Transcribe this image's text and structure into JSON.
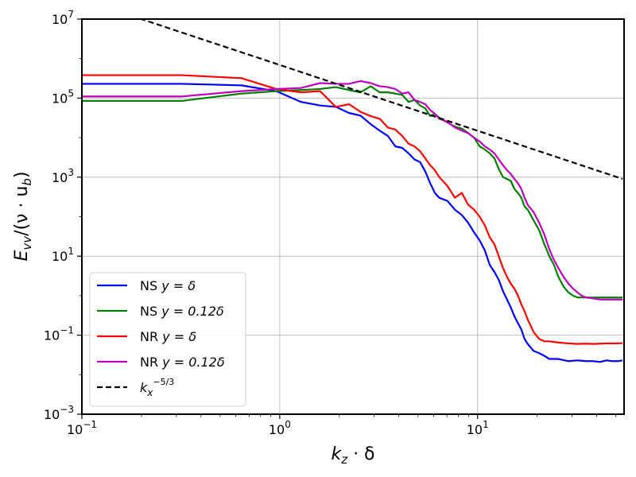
{
  "chart_data": {
    "type": "line",
    "xscale": "log",
    "yscale": "log",
    "xlim": [
      0.1,
      55
    ],
    "ylim": [
      0.001,
      10000000
    ],
    "grid": true,
    "legend_position": "lower-left",
    "xlabel_parts": {
      "base": "k",
      "sub": "z",
      "rest": " · δ"
    },
    "ylabel_parts": {
      "base": "E",
      "sub": "vv",
      "rest": "/(ν · u",
      "sub2": "b",
      "close": ")"
    },
    "x_ticks": [
      {
        "value": 0.1,
        "base": "10",
        "exp": "−1"
      },
      {
        "value": 1,
        "base": "10",
        "exp": "0"
      },
      {
        "value": 10,
        "base": "10",
        "exp": "1"
      }
    ],
    "y_ticks": [
      {
        "value": 0.001,
        "base": "10",
        "exp": "−3"
      },
      {
        "value": 0.1,
        "base": "10",
        "exp": "−1"
      },
      {
        "value": 10,
        "base": "10",
        "exp": "1"
      },
      {
        "value": 1000,
        "base": "10",
        "exp": "3"
      },
      {
        "value": 100000,
        "base": "10",
        "exp": "5"
      },
      {
        "value": 10000000,
        "base": "10",
        "exp": "7"
      }
    ],
    "series": [
      {
        "name": "NS y = δ",
        "name_parts": {
          "prefix": "NS ",
          "var": "y",
          "eq": " = ",
          "val": "δ"
        },
        "color": "#0000ff",
        "dash": "solid",
        "x": [
          0.1,
          0.2,
          0.32,
          0.64,
          0.96,
          1.28,
          1.6,
          1.92,
          2.24,
          2.56,
          2.88,
          3.2,
          3.52,
          3.84,
          4.16,
          4.48,
          4.8,
          5.12,
          5.44,
          5.76,
          6.08,
          6.4,
          7.04,
          7.68,
          8.32,
          8.96,
          9.6,
          10.24,
          10.88,
          11.52,
          12.16,
          12.8,
          13.44,
          14.08,
          14.72,
          15.36,
          16.0,
          16.64,
          17.28,
          17.92,
          19.2,
          20.48,
          21.76,
          23.04,
          25.6,
          28.8,
          32.0,
          35.2,
          38.4,
          41.6,
          44.8,
          48.0,
          51.2,
          54.0
        ],
        "y": [
          230000,
          230000,
          230000,
          210000,
          150000,
          80000,
          65000,
          60000,
          42000,
          36000,
          22000,
          15000,
          11000,
          6000,
          5500,
          4000,
          2800,
          2400,
          1400,
          700,
          400,
          300,
          250,
          150,
          110,
          70,
          40,
          25,
          14,
          6,
          4,
          2.5,
          1.3,
          0.8,
          0.5,
          0.3,
          0.2,
          0.14,
          0.08,
          0.06,
          0.04,
          0.035,
          0.03,
          0.025,
          0.025,
          0.022,
          0.023,
          0.022,
          0.022,
          0.021,
          0.023,
          0.022,
          0.022,
          0.023
        ]
      },
      {
        "name": "NS y = 0.12δ",
        "name_parts": {
          "prefix": "NS ",
          "var": "y",
          "eq": " = ",
          "val": "0.12δ"
        },
        "color": "#008000",
        "dash": "solid",
        "x": [
          0.1,
          0.2,
          0.32,
          0.64,
          0.96,
          1.28,
          1.6,
          1.92,
          2.24,
          2.56,
          2.88,
          3.2,
          3.52,
          3.84,
          4.16,
          4.48,
          4.8,
          5.12,
          5.44,
          5.76,
          6.08,
          6.4,
          7.04,
          7.68,
          8.32,
          8.96,
          9.6,
          10.24,
          10.88,
          11.52,
          12.16,
          12.8,
          13.44,
          14.08,
          14.72,
          15.36,
          16.0,
          16.64,
          17.28,
          17.92,
          19.2,
          20.48,
          21.76,
          23.04,
          24.32,
          25.6,
          27.2,
          28.8,
          30.4,
          32.0,
          33.6,
          35.2,
          38.4,
          41.6,
          44.8,
          48.0,
          51.2,
          54.0
        ],
        "y": [
          85000,
          85000,
          85000,
          130000,
          150000,
          160000,
          170000,
          190000,
          160000,
          140000,
          200000,
          140000,
          140000,
          130000,
          120000,
          80000,
          90000,
          65000,
          55000,
          35000,
          40000,
          32000,
          24000,
          19000,
          17000,
          13000,
          10000,
          6000,
          5000,
          4000,
          3000,
          1600,
          1000,
          900,
          800,
          500,
          400,
          300,
          180,
          150,
          80,
          45,
          20,
          10,
          6,
          3,
          1.7,
          1.2,
          1.0,
          0.9,
          0.9,
          0.9,
          0.9,
          0.9,
          0.9,
          0.9,
          0.9,
          0.9
        ]
      },
      {
        "name": "NR y = δ",
        "name_parts": {
          "prefix": "NR ",
          "var": "y",
          "eq": " = ",
          "val": "δ"
        },
        "color": "#ff0000",
        "dash": "solid",
        "x": [
          0.1,
          0.2,
          0.32,
          0.64,
          0.96,
          1.28,
          1.6,
          1.92,
          2.24,
          2.56,
          2.88,
          3.2,
          3.52,
          3.84,
          4.16,
          4.48,
          4.8,
          5.12,
          5.44,
          5.76,
          6.08,
          6.4,
          7.04,
          7.68,
          8.32,
          8.96,
          9.6,
          10.24,
          10.88,
          11.52,
          12.16,
          12.8,
          13.44,
          14.08,
          14.72,
          15.36,
          16.0,
          16.64,
          17.28,
          17.92,
          19.2,
          20.48,
          21.76,
          23.04,
          25.6,
          28.8,
          32.0,
          35.2,
          38.4,
          41.6,
          44.8,
          48.0,
          51.2,
          54.0
        ],
        "y": [
          380000,
          380000,
          380000,
          320000,
          170000,
          140000,
          150000,
          60000,
          70000,
          45000,
          35000,
          30000,
          18000,
          16000,
          11000,
          7000,
          6000,
          4500,
          3000,
          2000,
          1500,
          1000,
          600,
          300,
          400,
          200,
          150,
          100,
          60,
          30,
          20,
          10,
          5,
          3,
          2,
          1.5,
          1.0,
          0.6,
          0.4,
          0.25,
          0.12,
          0.08,
          0.07,
          0.07,
          0.065,
          0.062,
          0.06,
          0.061,
          0.06,
          0.061,
          0.062,
          0.062,
          0.062,
          0.063
        ]
      },
      {
        "name": "NR y = 0.12δ",
        "name_parts": {
          "prefix": "NR ",
          "var": "y",
          "eq": " = ",
          "val": "0.12δ"
        },
        "color": "#bf00bf",
        "dash": "solid",
        "x": [
          0.1,
          0.2,
          0.32,
          0.64,
          0.96,
          1.28,
          1.6,
          1.92,
          2.24,
          2.56,
          2.88,
          3.2,
          3.52,
          3.84,
          4.16,
          4.48,
          4.8,
          5.12,
          5.44,
          5.76,
          6.08,
          6.4,
          7.04,
          7.68,
          8.32,
          8.96,
          9.6,
          10.24,
          10.88,
          11.52,
          12.16,
          12.8,
          13.44,
          14.08,
          14.72,
          15.36,
          16.0,
          16.64,
          17.28,
          17.92,
          19.2,
          20.48,
          21.76,
          23.04,
          24.32,
          25.6,
          27.2,
          28.8,
          30.4,
          32.0,
          33.6,
          35.2,
          38.4,
          41.6,
          44.8,
          48.0,
          51.2,
          54.0
        ],
        "y": [
          110000,
          110000,
          110000,
          150000,
          170000,
          180000,
          240000,
          230000,
          230000,
          270000,
          240000,
          200000,
          190000,
          170000,
          130000,
          140000,
          90000,
          80000,
          70000,
          50000,
          40000,
          30000,
          25000,
          18000,
          15000,
          13000,
          10000,
          8000,
          6000,
          5000,
          4000,
          2800,
          2000,
          1500,
          1200,
          900,
          700,
          500,
          300,
          200,
          130,
          70,
          35,
          15,
          8,
          5,
          3,
          2,
          1.5,
          1.2,
          1.0,
          0.9,
          0.85,
          0.8,
          0.8,
          0.8,
          0.8,
          0.8
        ]
      },
      {
        "name": "k_x^-5/3",
        "name_parts": {
          "prefix": "",
          "var": "k",
          "sub": "x",
          "sup": "−5/3"
        },
        "color": "#000000",
        "dash": "dashed",
        "x": [
          0.1,
          0.2,
          0.4,
          0.8,
          1.6,
          3.2,
          6.4,
          12.8,
          25.6,
          54.0
        ],
        "y": [
          31500000,
          10000000,
          3150000,
          1000000,
          315000,
          99000,
          31300,
          9900,
          3120,
          900
        ]
      }
    ]
  }
}
